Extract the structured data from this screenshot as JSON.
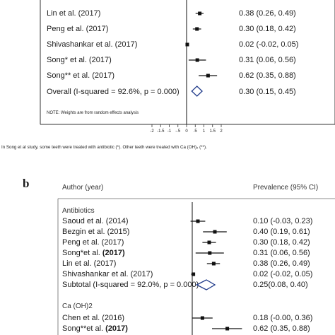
{
  "caption": "In Song et al study, some teeth were treated with antibiotic (*). Other teeth were treated with Ca (OH)₂ (**).",
  "panel_a": {
    "rows": [
      {
        "label": "Lin et al. (2017)",
        "est_text": "0.38 (0.26, 0.49)",
        "est": 0.38,
        "lo": 0.26,
        "hi": 0.49
      },
      {
        "label": "Peng et al. (2017)",
        "est_text": "0.30 (0.18, 0.42)",
        "est": 0.3,
        "lo": 0.18,
        "hi": 0.42
      },
      {
        "label": "Shivashankar et al. (2017)",
        "est_text": "0.02 (-0.02, 0.05)",
        "est": 0.02,
        "lo": -0.02,
        "hi": 0.05
      },
      {
        "label": "Song* et al. (2017)",
        "est_text": "0.31 (0.06, 0.56)",
        "est": 0.31,
        "lo": 0.06,
        "hi": 0.56
      },
      {
        "label": "Song** et al. (2017)",
        "est_text": "0.62 (0.35, 0.88)",
        "est": 0.62,
        "lo": 0.35,
        "hi": 0.88
      }
    ],
    "overall": {
      "label": "Overall  (I-squared = 92.6%, p = 0.000)",
      "est_text": "0.30 (0.15, 0.45)",
      "est": 0.3,
      "lo": 0.15,
      "hi": 0.45
    },
    "note": "NOTE: Weights are from random effects analysis",
    "ticks": [
      "-2",
      "-1.5",
      "-1",
      "-.5",
      "0",
      ".5",
      "1",
      "1.5",
      "2"
    ]
  },
  "panel_b": {
    "letter": "b",
    "header_left": "Author (year)",
    "header_right": "Prevalence (95% CI)",
    "groups": [
      {
        "name": "Antibiotics",
        "rows": [
          {
            "label": "Saoud et al. (2014)",
            "est_text": "0.10 (-0.03, 0.23)",
            "est": 0.1,
            "lo": -0.03,
            "hi": 0.23
          },
          {
            "label": "Bezgin et al. (2015)",
            "est_text": "0.40 (0.19, 0.61)",
            "est": 0.4,
            "lo": 0.19,
            "hi": 0.61
          },
          {
            "label": "Peng et al. (2017)",
            "est_text": "0.30 (0.18, 0.42)",
            "est": 0.3,
            "lo": 0.18,
            "hi": 0.42
          },
          {
            "label": "Song*et al. (2017)",
            "est_text": "0.31 (0.06, 0.56)",
            "est": 0.31,
            "lo": 0.06,
            "hi": 0.56
          },
          {
            "label": "Lin et al. (2017)",
            "est_text": "0.38 (0.26, 0.49)",
            "est": 0.38,
            "lo": 0.26,
            "hi": 0.49
          },
          {
            "label": "Shivashankar et al. (2017)",
            "est_text": "0.02 (-0.02, 0.05)",
            "est": 0.02,
            "lo": -0.02,
            "hi": 0.05
          }
        ],
        "subtotal": {
          "label": "Subtotal  (I-squared = 92.0%, p = 0.000)",
          "est_text": "0.25(0.08, 0.40)",
          "est": 0.25,
          "lo": 0.08,
          "hi": 0.4
        }
      },
      {
        "name": "Ca (OH)2",
        "rows": [
          {
            "label": "Chen et al. (2016)",
            "est_text": "0.18 (-0.00, 0.36)",
            "est": 0.18,
            "lo": -0.0,
            "hi": 0.36
          },
          {
            "label": "Song**et al. (2017)",
            "est_text": "0.62 (0.35, 0.88)",
            "est": 0.62,
            "lo": 0.35,
            "hi": 0.88
          }
        ]
      }
    ]
  },
  "chart_data": [
    {
      "type": "scatter",
      "x": [
        0.38,
        0.3,
        0.02,
        0.31,
        0.62,
        0.3
      ],
      "lo": [
        0.26,
        0.18,
        -0.02,
        0.06,
        0.35,
        0.15
      ],
      "hi": [
        0.49,
        0.42,
        0.05,
        0.56,
        0.88,
        0.45
      ],
      "categories": [
        "Lin et al. (2017)",
        "Peng et al. (2017)",
        "Shivashankar et al. (2017)",
        "Song* et al. (2017)",
        "Song** et al. (2017)",
        "Overall  (I-squared = 92.6%, p = 0.000)"
      ],
      "xlim": [
        -2,
        2
      ],
      "grid": false
    },
    {
      "type": "scatter",
      "x": [
        0.1,
        0.4,
        0.3,
        0.31,
        0.38,
        0.02,
        0.25,
        0.18,
        0.62
      ],
      "lo": [
        -0.03,
        0.19,
        0.18,
        0.06,
        0.26,
        -0.02,
        0.08,
        -0.0,
        0.35
      ],
      "hi": [
        0.23,
        0.61,
        0.42,
        0.56,
        0.49,
        0.05,
        0.4,
        0.36,
        0.88
      ],
      "categories": [
        "Saoud et al. (2014)",
        "Bezgin et al. (2015)",
        "Peng et al. (2017)",
        "Song*et al. (2017)",
        "Lin et al. (2017)",
        "Shivashankar et al. (2017)",
        "Subtotal  (I-squared = 92.0%, p = 0.000)",
        "Chen et al. (2016)",
        "Song**et al. (2017)"
      ],
      "grid": false
    }
  ]
}
